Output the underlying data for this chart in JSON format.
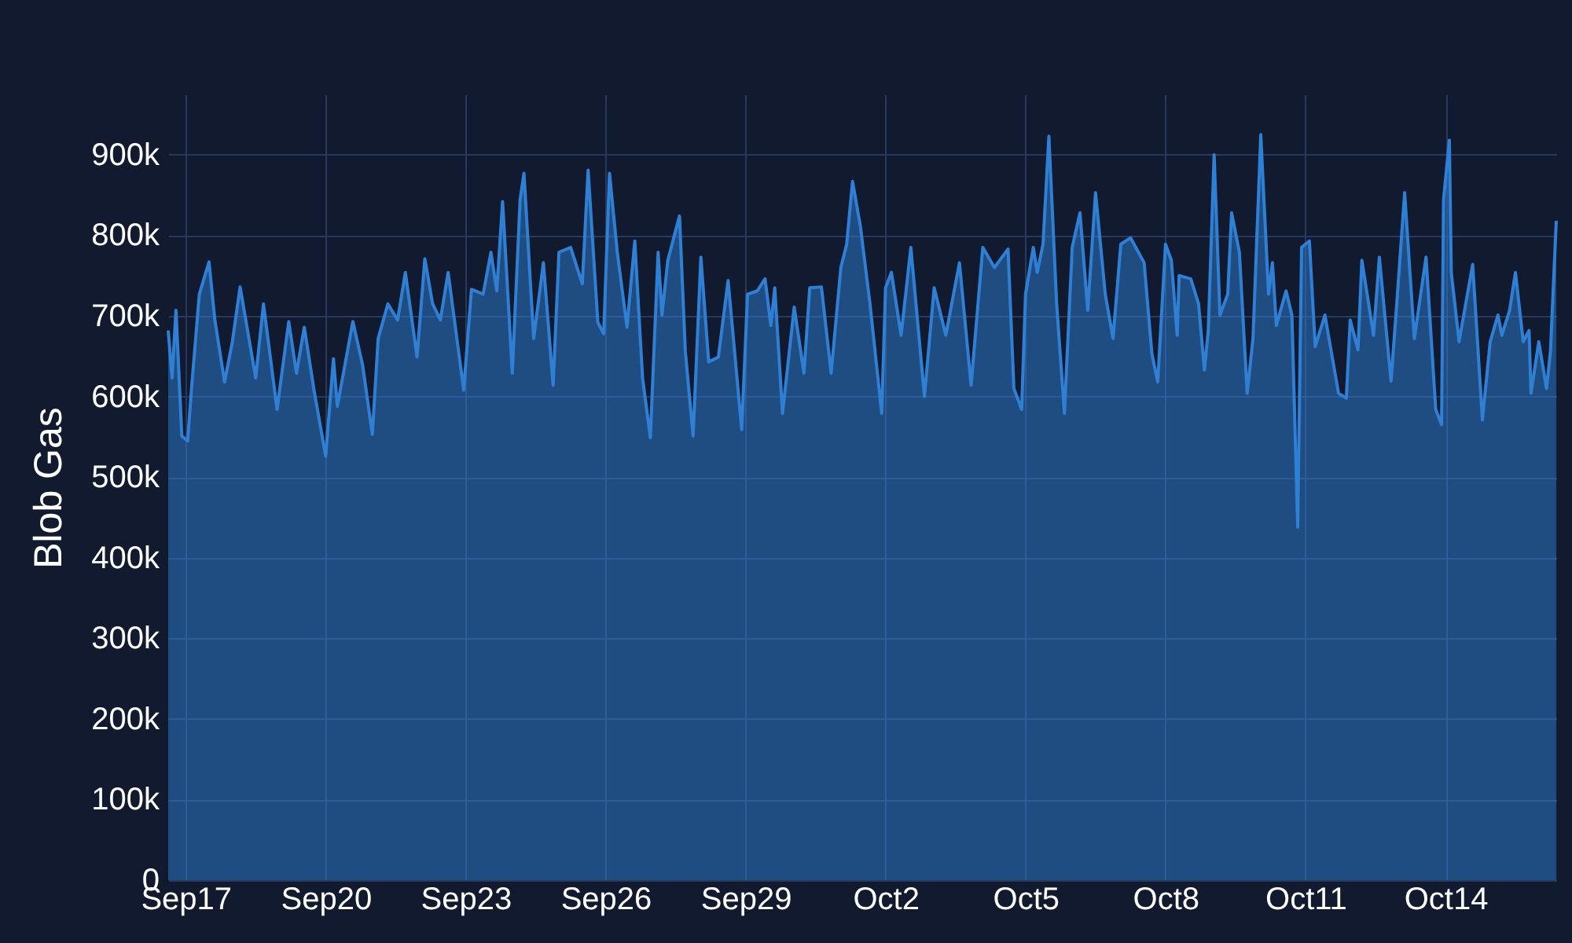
{
  "chart_data": {
    "type": "area",
    "ylabel": "Blob Gas",
    "x": [
      "--09-16T15:00",
      "--09-16T17:00",
      "--09-16T19:00",
      "--09-16T22:00",
      "--09-17T01:00",
      "--09-17T03:00",
      "--09-17T07:00",
      "--09-17T12:00",
      "--09-17T15:00",
      "--09-17T20:00",
      "--09-18T00:00",
      "--09-18T04:00",
      "--09-18T12:00",
      "--09-18T16:00",
      "--09-18T23:00",
      "--09-19T05:00",
      "--09-19T09:00",
      "--09-19T13:00",
      "--09-19T18:00",
      "--09-20T00:00",
      "--09-20T04:00",
      "--09-20T06:00",
      "--09-20T14:00",
      "--09-20T19:00",
      "--09-21T00:00",
      "--09-21T03:00",
      "--09-21T08:00",
      "--09-21T13:00",
      "--09-21T17:00",
      "--09-21T23:00",
      "--09-22T03:00",
      "--09-22T07:00",
      "--09-22T11:00",
      "--09-22T15:00",
      "--09-22T23:00",
      "--09-23T03:00",
      "--09-23T09:00",
      "--09-23T13:00",
      "--09-23T16:00",
      "--09-23T19:00",
      "--09-24T00:00",
      "--09-24T04:00",
      "--09-24T06:00",
      "--09-24T11:00",
      "--09-24T16:00",
      "--09-24T21:00",
      "--09-25T00:00",
      "--09-25T06:00",
      "--09-25T12:00",
      "--09-25T15:00",
      "--09-25T20:00",
      "--09-25T23:00",
      "--09-26T02:00",
      "--09-26T06:00",
      "--09-26T11:00",
      "--09-26T15:00",
      "--09-26T19:00",
      "--09-26T23:00",
      "--09-27T03:00",
      "--09-27T05:00",
      "--09-27T08:00",
      "--09-27T14:00",
      "--09-27T17:00",
      "--09-27T21:00",
      "--09-28T01:00",
      "--09-28T05:00",
      "--09-28T10:00",
      "--09-28T15:00",
      "--09-28T22:00",
      "--09-29T01:00",
      "--09-29T06:00",
      "--09-29T10:00",
      "--09-29T13:00",
      "--09-29T15:00",
      "--09-29T19:00",
      "--09-30T01:00",
      "--09-30T06:00",
      "--09-30T09:00",
      "--09-30T15:00",
      "--09-30T20:00",
      "--10-01T01:00",
      "--10-01T04:00",
      "--10-01T07:00",
      "--10-01T11:00",
      "--10-01T16:00",
      "--10-01T22:00",
      "--10-02T00:00",
      "--10-02T03:00",
      "--10-02T08:00",
      "--10-02T13:00",
      "--10-02T20:00",
      "--10-03T01:00",
      "--10-03T07:00",
      "--10-03T14:00",
      "--10-03T20:00",
      "--10-04T02:00",
      "--10-04T08:00",
      "--10-04T15:00",
      "--10-04T18:00",
      "--10-04T22:00",
      "--10-05T00:00",
      "--10-05T04:00",
      "--10-05T06:00",
      "--10-05T09:00",
      "--10-05T12:00",
      "--10-05T16:00",
      "--10-05T20:00",
      "--10-06T00:00",
      "--10-06T04:00",
      "--10-06T08:00",
      "--10-06T12:00",
      "--10-06T17:00",
      "--10-06T21:00",
      "--10-07T01:00",
      "--10-07T06:00",
      "--10-07T13:00",
      "--10-07T17:00",
      "--10-07T20:00",
      "--10-08T00:00",
      "--10-08T03:00",
      "--10-08T06:00",
      "--10-08T07:00",
      "--10-08T13:00",
      "--10-08T17:00",
      "--10-08T20:00",
      "--10-08T22:00",
      "--10-09T01:00",
      "--10-09T04:00",
      "--10-09T08:00",
      "--10-09T10:00",
      "--10-09T14:00",
      "--10-09T18:00",
      "--10-09T21:00",
      "--10-10T01:00",
      "--10-10T05:00",
      "--10-10T07:00",
      "--10-10T09:00",
      "--10-10T14:00",
      "--10-10T17:00",
      "--10-10T20:00",
      "--10-10T22:00",
      "--10-11T02:00",
      "--10-11T05:00",
      "--10-11T10:00",
      "--10-11T17:00",
      "--10-11T21:00",
      "--10-11T23:00",
      "--10-12T03:00",
      "--10-12T05:00",
      "--10-12T11:00",
      "--10-12T14:00",
      "--10-12T20:00",
      "--10-12T23:00",
      "--10-13T03:00",
      "--10-13T08:00",
      "--10-13T14:00",
      "--10-13T19:00",
      "--10-13T22:00",
      "--10-13T23:00",
      "--10-14T02:00",
      "--10-14T03:00",
      "--10-14T07:00",
      "--10-14T14:00",
      "--10-14T19:00",
      "--10-14T23:00",
      "--10-15T03:00",
      "--10-15T05:00",
      "--10-15T09:00",
      "--10-15T12:00",
      "--10-15T16:00",
      "--10-15T19:00",
      "--10-15T20:00",
      "--10-16T00:00",
      "--10-16T04:00",
      "--10-16T06:00",
      "--10-16T09:00"
    ],
    "series": [
      {
        "color": "#2f7fd4",
        "values": [
          682000,
          623000,
          707000,
          551000,
          545000,
          610000,
          727000,
          767000,
          695000,
          618000,
          668000,
          736000,
          623000,
          715000,
          584000,
          693000,
          629000,
          686000,
          608000,
          526000,
          647000,
          588000,
          693000,
          639000,
          553000,
          672000,
          715000,
          695000,
          754000,
          649000,
          771000,
          715000,
          695000,
          754000,
          608000,
          733000,
          727000,
          779000,
          731000,
          842000,
          629000,
          844000,
          877000,
          672000,
          766000,
          614000,
          779000,
          785000,
          740000,
          881000,
          692000,
          678000,
          877000,
          779000,
          686000,
          793000,
          623000,
          549000,
          779000,
          701000,
          769000,
          824000,
          656000,
          551000,
          773000,
          643000,
          649000,
          744000,
          559000,
          727000,
          731000,
          746000,
          688000,
          735000,
          579000,
          711000,
          629000,
          735000,
          736000,
          629000,
          760000,
          789000,
          867000,
          812000,
          715000,
          579000,
          735000,
          754000,
          676000,
          785000,
          600000,
          735000,
          676000,
          766000,
          614000,
          785000,
          760000,
          783000,
          610000,
          584000,
          727000,
          785000,
          754000,
          789000,
          923000,
          715000,
          579000,
          785000,
          828000,
          707000,
          853000,
          727000,
          672000,
          789000,
          797000,
          766000,
          653000,
          618000,
          789000,
          769000,
          676000,
          750000,
          746000,
          715000,
          633000,
          682000,
          900000,
          701000,
          727000,
          828000,
          779000,
          604000,
          672000,
          925000,
          727000,
          766000,
          688000,
          731000,
          701000,
          438000,
          785000,
          793000,
          662000,
          701000,
          604000,
          598000,
          695000,
          658000,
          769000,
          676000,
          773000,
          619000,
          717000,
          853000,
          672000,
          773000,
          584000,
          565000,
          844000,
          918000,
          754000,
          668000,
          764000,
          571000,
          668000,
          701000,
          676000,
          707000,
          754000,
          668000,
          682000,
          604000,
          668000,
          610000,
          656000,
          818000
        ]
      }
    ],
    "xlim": [
      "--09-16T15:00",
      "--10-16T09:00"
    ],
    "xticks": [
      {
        "value": "--09-17",
        "label": "Sep17"
      },
      {
        "value": "--09-20",
        "label": "Sep20"
      },
      {
        "value": "--09-23",
        "label": "Sep23"
      },
      {
        "value": "--09-26",
        "label": "Sep26"
      },
      {
        "value": "--09-29",
        "label": "Sep29"
      },
      {
        "value": "--10-02",
        "label": "Oct2"
      },
      {
        "value": "--10-05",
        "label": "Oct5"
      },
      {
        "value": "--10-08",
        "label": "Oct8"
      },
      {
        "value": "--10-11",
        "label": "Oct11"
      },
      {
        "value": "--10-14",
        "label": "Oct14"
      }
    ],
    "ylim": [
      0,
      975000
    ],
    "yticks": [
      0,
      {
        "value": 100000,
        "label": "100k"
      },
      {
        "value": 200000,
        "label": "200k"
      },
      {
        "value": 300000,
        "label": "300k"
      },
      {
        "value": 400000,
        "label": "400k"
      },
      {
        "value": 500000,
        "label": "500k"
      },
      {
        "value": 600000,
        "label": "600k"
      },
      {
        "value": 700000,
        "label": "700k"
      },
      {
        "value": 800000,
        "label": "800k"
      },
      {
        "value": 900000,
        "label": "900k"
      }
    ],
    "grid": true
  }
}
